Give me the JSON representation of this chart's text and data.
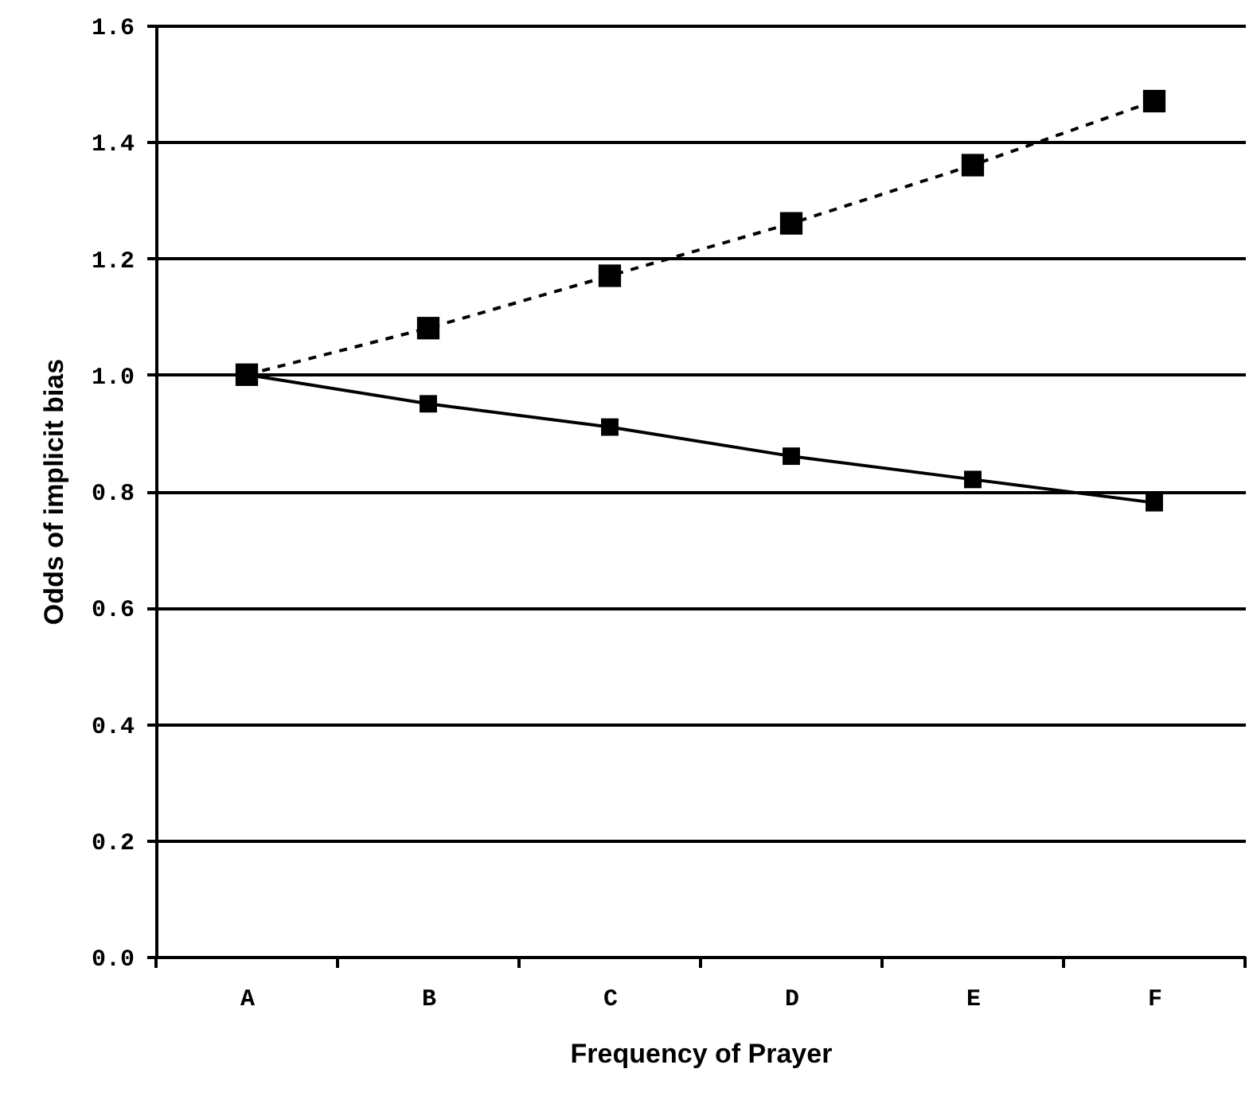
{
  "chart_data": {
    "type": "line",
    "xlabel": "Frequency of Prayer",
    "ylabel": "Odds of implicit bias",
    "categories": [
      "A",
      "B",
      "C",
      "D",
      "E",
      "F"
    ],
    "series": [
      {
        "color": "#000000",
        "line_style": "dashed",
        "values": [
          1.0,
          1.08,
          1.17,
          1.26,
          1.36,
          1.47
        ]
      },
      {
        "color": "#000000",
        "line_style": "solid",
        "values": [
          1.0,
          0.95,
          0.91,
          0.86,
          0.82,
          0.78
        ]
      }
    ],
    "ylim": [
      0,
      1.6
    ],
    "yticks": [
      {
        "value": 0,
        "label": "0.0"
      },
      {
        "value": 0.2,
        "label": "0.2"
      },
      {
        "value": 0.4,
        "label": "0.4"
      },
      {
        "value": 0.6,
        "label": "0.6"
      },
      {
        "value": 0.8,
        "label": "0.8"
      },
      {
        "value": 1,
        "label": "1.0"
      },
      {
        "value": 1.2,
        "label": "1.2"
      },
      {
        "value": 1.4,
        "label": "1.4"
      },
      {
        "value": 1.6,
        "label": "1.6"
      }
    ],
    "grid": "y",
    "marker": "square"
  }
}
